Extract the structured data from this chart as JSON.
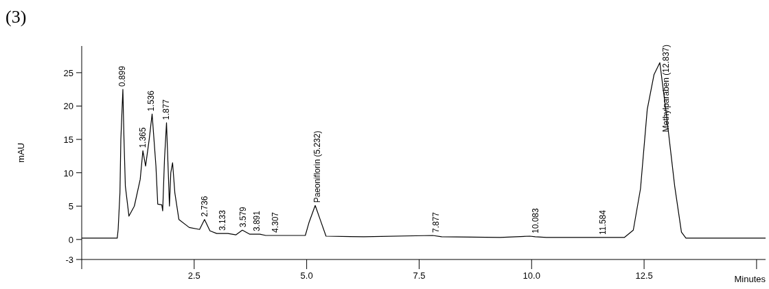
{
  "chart_data": {
    "type": "line",
    "title": "(3)",
    "xlabel": "Minutes",
    "ylabel": "mAU",
    "xlim": [
      0,
      15.2
    ],
    "ylim": [
      -3,
      29
    ],
    "xticks": [
      {
        "value": 0,
        "label": null
      },
      {
        "value": 2.5,
        "label": "2.5"
      },
      {
        "value": 5,
        "label": "5.0"
      },
      {
        "value": 7.5,
        "label": "7.5"
      },
      {
        "value": 10,
        "label": "10.0"
      },
      {
        "value": 12.5,
        "label": "12.5"
      },
      {
        "value": 15,
        "label": null
      }
    ],
    "yticks": [
      -3,
      0,
      5,
      10,
      15,
      20,
      25
    ],
    "series": [
      {
        "color": "#000000",
        "x": [
          0,
          0.79,
          0.81,
          0.85,
          0.87,
          0.915,
          0.94,
          0.97,
          1.05,
          1.17,
          1.3,
          1.36,
          1.42,
          1.5,
          1.565,
          1.65,
          1.69,
          1.78,
          1.8,
          1.84,
          1.885,
          1.93,
          1.95,
          1.98,
          2.02,
          2.07,
          2.16,
          2.39,
          2.62,
          2.73,
          2.85,
          3.0,
          3.25,
          3.43,
          3.57,
          3.73,
          3.96,
          4.09,
          4.52,
          4.97,
          5.05,
          5.19,
          5.31,
          5.43,
          6.27,
          7.8,
          8.0,
          9.3,
          9.96,
          10.08,
          10.33,
          11.75,
          12.06,
          12.26,
          12.42,
          12.57,
          12.72,
          12.85,
          13.0,
          13.18,
          13.33,
          13.43,
          15.2
        ],
        "values": [
          0.2,
          0.2,
          1.5,
          7,
          15,
          22.5,
          15,
          8,
          3.5,
          5,
          9,
          13.3,
          11,
          15,
          18.8,
          11,
          5.3,
          5.2,
          4.3,
          12,
          17.5,
          9,
          5,
          10,
          11.5,
          7,
          3,
          1.8,
          1.5,
          3,
          1.3,
          0.9,
          0.9,
          0.7,
          1.4,
          0.8,
          0.8,
          0.6,
          0.6,
          0.6,
          2.5,
          5.1,
          2.8,
          0.5,
          0.4,
          0.6,
          0.4,
          0.3,
          0.5,
          0.4,
          0.3,
          0.3,
          0.3,
          1.4,
          7.6,
          19.5,
          24.7,
          26.5,
          18.5,
          8,
          1.1,
          0.2,
          0.2
        ]
      }
    ],
    "annotations": [
      {
        "text": "0.899",
        "x": 0.899,
        "y": 22.5
      },
      {
        "text": "1.365",
        "x": 1.365,
        "y": 13.3
      },
      {
        "text": "1.536",
        "x": 1.536,
        "y": 18.8
      },
      {
        "text": "1.877",
        "x": 1.877,
        "y": 17.5
      },
      {
        "text": "2.736",
        "x": 2.736,
        "y": 3
      },
      {
        "text": "3.133",
        "x": 3.133,
        "y": 0.9
      },
      {
        "text": "3.579",
        "x": 3.579,
        "y": 1.4
      },
      {
        "text": "3.891",
        "x": 3.891,
        "y": 0.8
      },
      {
        "text": "4.307",
        "x": 4.307,
        "y": 0.6
      },
      {
        "text": "Paeoniflorin (5.232)",
        "x": 5.232,
        "y": 5.1
      },
      {
        "text": "7.877",
        "x": 7.877,
        "y": 0.6
      },
      {
        "text": "10.083",
        "x": 10.083,
        "y": 0.5
      },
      {
        "text": "11.584",
        "x": 11.584,
        "y": 0.3
      },
      {
        "text": "Methylparaben (12.837)",
        "x": 12.837,
        "y": 26.5
      }
    ]
  }
}
